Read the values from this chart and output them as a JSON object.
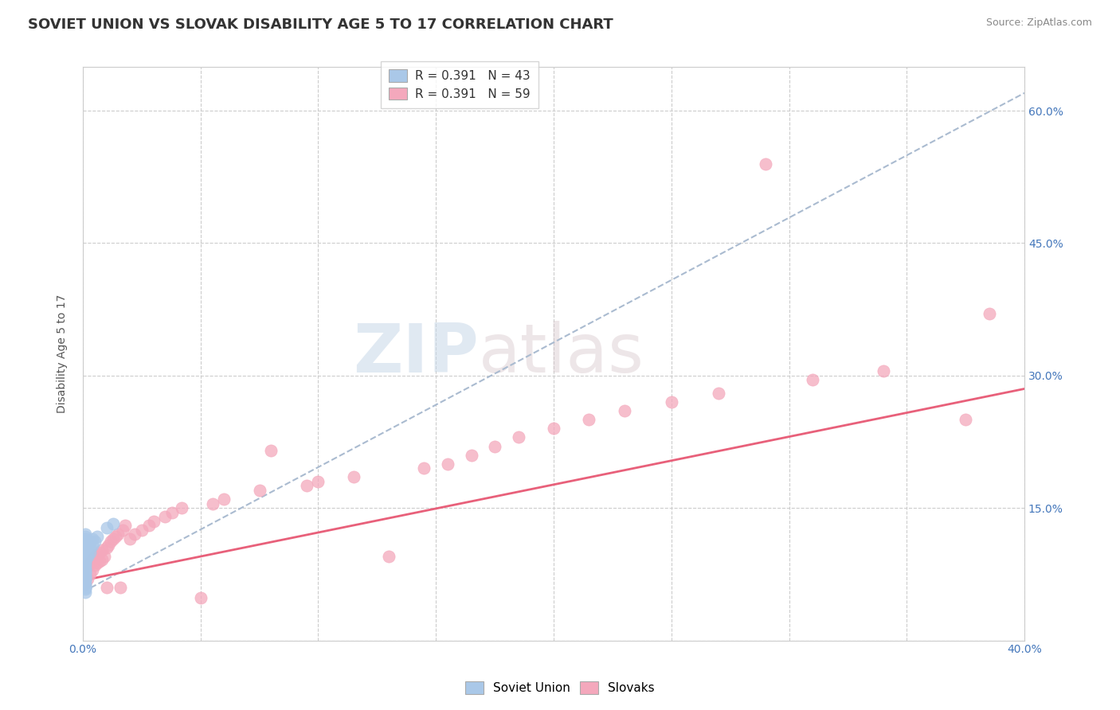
{
  "title": "SOVIET UNION VS SLOVAK DISABILITY AGE 5 TO 17 CORRELATION CHART",
  "source_text": "Source: ZipAtlas.com",
  "ylabel": "Disability Age 5 to 17",
  "xlim": [
    0.0,
    0.4
  ],
  "ylim": [
    0.0,
    0.65
  ],
  "x_ticks": [
    0.0,
    0.05,
    0.1,
    0.15,
    0.2,
    0.25,
    0.3,
    0.35,
    0.4
  ],
  "x_tick_labels": [
    "0.0%",
    "",
    "",
    "",
    "",
    "",
    "",
    "",
    "40.0%"
  ],
  "y_ticks": [
    0.0,
    0.15,
    0.3,
    0.45,
    0.6
  ],
  "y_tick_labels": [
    "",
    "15.0%",
    "30.0%",
    "45.0%",
    "60.0%"
  ],
  "grid_color": "#cccccc",
  "background_color": "#ffffff",
  "soviet_color": "#aac8e8",
  "slovak_color": "#f4a8bc",
  "soviet_line_color": "#aabbd0",
  "slovak_line_color": "#e8607a",
  "legend_r_soviet": "R = 0.391",
  "legend_n_soviet": "N = 43",
  "legend_r_slovak": "R = 0.391",
  "legend_n_slovak": "N = 59",
  "title_fontsize": 13,
  "axis_label_fontsize": 10,
  "tick_fontsize": 10,
  "legend_fontsize": 11,
  "source_fontsize": 9,
  "soviet_x": [
    0.001,
    0.001,
    0.001,
    0.001,
    0.001,
    0.001,
    0.001,
    0.001,
    0.001,
    0.001,
    0.001,
    0.001,
    0.001,
    0.001,
    0.001,
    0.001,
    0.001,
    0.001,
    0.001,
    0.001,
    0.001,
    0.001,
    0.001,
    0.001,
    0.001,
    0.001,
    0.001,
    0.001,
    0.001,
    0.002,
    0.002,
    0.002,
    0.002,
    0.002,
    0.003,
    0.003,
    0.003,
    0.004,
    0.004,
    0.005,
    0.006,
    0.01,
    0.013
  ],
  "soviet_y": [
    0.055,
    0.06,
    0.062,
    0.065,
    0.068,
    0.07,
    0.072,
    0.074,
    0.076,
    0.078,
    0.08,
    0.082,
    0.085,
    0.088,
    0.09,
    0.092,
    0.095,
    0.097,
    0.1,
    0.102,
    0.105,
    0.108,
    0.11,
    0.112,
    0.115,
    0.118,
    0.12,
    0.06,
    0.058,
    0.095,
    0.098,
    0.1,
    0.105,
    0.11,
    0.1,
    0.105,
    0.112,
    0.108,
    0.115,
    0.112,
    0.118,
    0.128,
    0.132
  ],
  "slovak_x": [
    0.001,
    0.001,
    0.002,
    0.002,
    0.003,
    0.003,
    0.004,
    0.004,
    0.005,
    0.005,
    0.006,
    0.006,
    0.007,
    0.007,
    0.008,
    0.008,
    0.009,
    0.01,
    0.01,
    0.011,
    0.012,
    0.013,
    0.014,
    0.015,
    0.016,
    0.017,
    0.018,
    0.02,
    0.022,
    0.025,
    0.028,
    0.03,
    0.035,
    0.038,
    0.042,
    0.05,
    0.055,
    0.06,
    0.075,
    0.08,
    0.095,
    0.1,
    0.115,
    0.13,
    0.145,
    0.155,
    0.165,
    0.175,
    0.185,
    0.2,
    0.215,
    0.23,
    0.25,
    0.27,
    0.29,
    0.31,
    0.34,
    0.375,
    0.385
  ],
  "slovak_y": [
    0.065,
    0.08,
    0.07,
    0.085,
    0.075,
    0.088,
    0.08,
    0.092,
    0.085,
    0.095,
    0.088,
    0.098,
    0.09,
    0.1,
    0.092,
    0.102,
    0.095,
    0.06,
    0.105,
    0.108,
    0.112,
    0.115,
    0.118,
    0.12,
    0.06,
    0.125,
    0.13,
    0.115,
    0.12,
    0.125,
    0.13,
    0.135,
    0.14,
    0.145,
    0.15,
    0.048,
    0.155,
    0.16,
    0.17,
    0.215,
    0.175,
    0.18,
    0.185,
    0.095,
    0.195,
    0.2,
    0.21,
    0.22,
    0.23,
    0.24,
    0.25,
    0.26,
    0.27,
    0.28,
    0.54,
    0.295,
    0.305,
    0.25,
    0.37
  ],
  "slovak_trend_x0": 0.0,
  "slovak_trend_y0": 0.068,
  "slovak_trend_x1": 0.4,
  "slovak_trend_y1": 0.285,
  "soviet_trend_x0": 0.0,
  "soviet_trend_y0": 0.055,
  "soviet_trend_x1": 0.4,
  "soviet_trend_y1": 0.62
}
